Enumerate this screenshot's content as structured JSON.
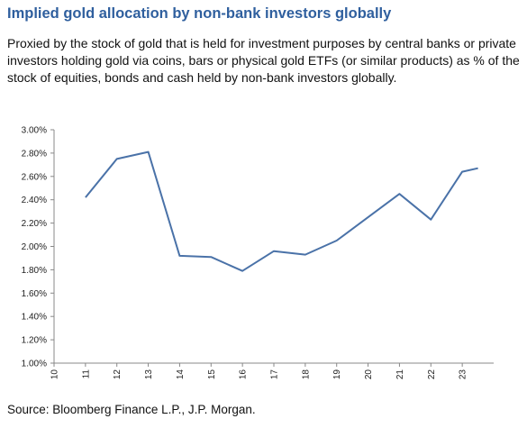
{
  "title": "Implied gold allocation by non-bank investors globally",
  "subtitle": "Proxied by the stock of gold that is held for investment purposes by central banks or private investors holding gold via coins, bars or physical gold ETFs (or similar products) as % of the stock of equities, bonds and cash held by non-bank investors globally.",
  "source": "Source: Bloomberg Finance L.P., J.P. Morgan.",
  "chart_data": {
    "type": "line",
    "title": "Implied gold allocation by non-bank investors globally",
    "xlabel": "",
    "ylabel": "",
    "x_ticks": [
      "10",
      "11",
      "12",
      "13",
      "14",
      "15",
      "16",
      "17",
      "18",
      "19",
      "20",
      "21",
      "22",
      "23"
    ],
    "y_ticks": [
      "1.00%",
      "1.20%",
      "1.40%",
      "1.60%",
      "1.80%",
      "2.00%",
      "2.20%",
      "2.40%",
      "2.60%",
      "2.80%",
      "3.00%"
    ],
    "xlim": [
      10,
      24
    ],
    "ylim": [
      1.0,
      3.0
    ],
    "grid": false,
    "series": [
      {
        "color": "#4a72a8",
        "x": [
          11,
          12,
          13,
          14,
          15,
          16,
          17,
          18,
          19,
          20,
          21,
          22,
          23,
          23.5
        ],
        "y": [
          2.42,
          2.75,
          2.81,
          1.92,
          1.91,
          1.79,
          1.96,
          1.93,
          2.05,
          2.25,
          2.45,
          2.23,
          2.64,
          2.67
        ]
      }
    ]
  }
}
